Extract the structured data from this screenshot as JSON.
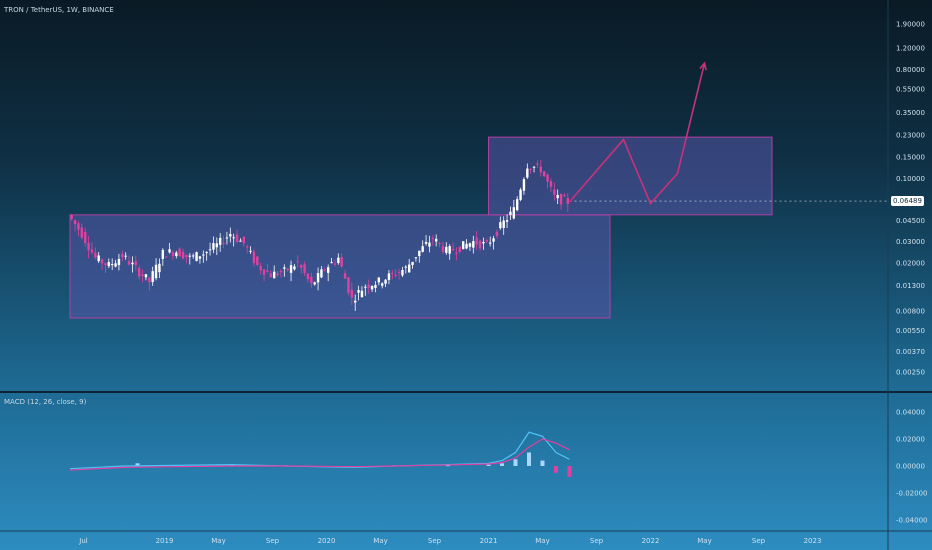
{
  "chart_data": [
    {
      "type": "candlestick",
      "title": "TRON / TetherUS, 1W, BINANCE",
      "y_scale": "log",
      "y_ticks": [
        "1.90000",
        "1.20000",
        "0.80000",
        "0.55000",
        "0.35000",
        "0.23000",
        "0.15000",
        "0.10000",
        "0.04500",
        "0.03000",
        "0.02000",
        "0.01300",
        "0.00800",
        "0.00550",
        "0.00370",
        "0.00250"
      ],
      "current_price": "0.06489",
      "x_ticks": [
        "Jul",
        "2019",
        "May",
        "Sep",
        "2020",
        "May",
        "Sep",
        "2021",
        "May",
        "Sep",
        "2022",
        "May",
        "Sep",
        "2023"
      ],
      "ranges": [
        {
          "name": "accumulation-box",
          "from": "2018-06",
          "to": "2021-10",
          "top": 0.05,
          "bottom": 0.007
        },
        {
          "name": "upper-box",
          "from": "2021-01",
          "to": "2022-10",
          "top": 0.22,
          "bottom": 0.05
        }
      ],
      "projection": [
        {
          "date": "2021-07",
          "price": 0.064
        },
        {
          "date": "2021-11",
          "price": 0.21
        },
        {
          "date": "2022-01",
          "price": 0.062
        },
        {
          "date": "2022-03",
          "price": 0.11
        },
        {
          "date": "2022-05",
          "price": 0.9
        }
      ],
      "series_points": [
        {
          "date": "2018-06",
          "price": 0.05
        },
        {
          "date": "2018-07",
          "price": 0.035
        },
        {
          "date": "2018-08",
          "price": 0.022
        },
        {
          "date": "2018-09",
          "price": 0.019
        },
        {
          "date": "2018-10",
          "price": 0.023
        },
        {
          "date": "2018-11",
          "price": 0.018
        },
        {
          "date": "2018-12",
          "price": 0.014
        },
        {
          "date": "2019-01",
          "price": 0.024
        },
        {
          "date": "2019-02",
          "price": 0.025
        },
        {
          "date": "2019-03",
          "price": 0.022
        },
        {
          "date": "2019-04",
          "price": 0.024
        },
        {
          "date": "2019-05",
          "price": 0.028
        },
        {
          "date": "2019-06",
          "price": 0.035
        },
        {
          "date": "2019-07",
          "price": 0.029
        },
        {
          "date": "2019-08",
          "price": 0.019
        },
        {
          "date": "2019-09",
          "price": 0.016
        },
        {
          "date": "2019-10",
          "price": 0.017
        },
        {
          "date": "2019-11",
          "price": 0.02
        },
        {
          "date": "2019-12",
          "price": 0.013
        },
        {
          "date": "2020-01",
          "price": 0.018
        },
        {
          "date": "2020-02",
          "price": 0.022
        },
        {
          "date": "2020-03",
          "price": 0.01
        },
        {
          "date": "2020-04",
          "price": 0.013
        },
        {
          "date": "2020-05",
          "price": 0.014
        },
        {
          "date": "2020-06",
          "price": 0.016
        },
        {
          "date": "2020-07",
          "price": 0.018
        },
        {
          "date": "2020-08",
          "price": 0.025
        },
        {
          "date": "2020-09",
          "price": 0.032
        },
        {
          "date": "2020-10",
          "price": 0.025
        },
        {
          "date": "2020-11",
          "price": 0.027
        },
        {
          "date": "2020-12",
          "price": 0.03
        },
        {
          "date": "2021-01",
          "price": 0.028
        },
        {
          "date": "2021-02",
          "price": 0.04
        },
        {
          "date": "2021-03",
          "price": 0.055
        },
        {
          "date": "2021-04",
          "price": 0.13
        },
        {
          "date": "2021-05",
          "price": 0.12
        },
        {
          "date": "2021-06",
          "price": 0.07
        },
        {
          "date": "2021-07",
          "price": 0.064
        }
      ]
    },
    {
      "type": "line",
      "title": "MACD (12, 26, close, 9)",
      "y_ticks": [
        "0.04000",
        "0.02000",
        "0.00000",
        "-0.02000",
        "-0.04000"
      ],
      "macd": [
        {
          "date": "2018-06",
          "value": -0.002
        },
        {
          "date": "2018-10",
          "value": 0.0
        },
        {
          "date": "2019-06",
          "value": 0.001
        },
        {
          "date": "2019-10",
          "value": 0.0
        },
        {
          "date": "2020-03",
          "value": -0.001
        },
        {
          "date": "2020-06",
          "value": 0.0
        },
        {
          "date": "2020-10",
          "value": 0.001
        },
        {
          "date": "2021-01",
          "value": 0.002
        },
        {
          "date": "2021-02",
          "value": 0.004
        },
        {
          "date": "2021-03",
          "value": 0.01
        },
        {
          "date": "2021-04",
          "value": 0.025
        },
        {
          "date": "2021-05",
          "value": 0.022
        },
        {
          "date": "2021-06",
          "value": 0.01
        },
        {
          "date": "2021-07",
          "value": 0.005
        }
      ],
      "signal": [
        {
          "date": "2018-06",
          "value": -0.003
        },
        {
          "date": "2018-10",
          "value": -0.001
        },
        {
          "date": "2019-06",
          "value": 0.0
        },
        {
          "date": "2019-10",
          "value": 0.0
        },
        {
          "date": "2020-03",
          "value": -0.0005
        },
        {
          "date": "2020-06",
          "value": 0.0
        },
        {
          "date": "2020-10",
          "value": 0.0008
        },
        {
          "date": "2021-01",
          "value": 0.0015
        },
        {
          "date": "2021-02",
          "value": 0.0025
        },
        {
          "date": "2021-03",
          "value": 0.006
        },
        {
          "date": "2021-04",
          "value": 0.014
        },
        {
          "date": "2021-05",
          "value": 0.02
        },
        {
          "date": "2021-06",
          "value": 0.017
        },
        {
          "date": "2021-07",
          "value": 0.012
        }
      ],
      "histogram": [
        {
          "date": "2018-11",
          "value": 0.002
        },
        {
          "date": "2019-06",
          "value": 0.001
        },
        {
          "date": "2019-10",
          "value": 0.0005
        },
        {
          "date": "2020-06",
          "value": 0.0005
        },
        {
          "date": "2020-10",
          "value": 0.0006
        },
        {
          "date": "2021-01",
          "value": 0.001
        },
        {
          "date": "2021-02",
          "value": 0.002
        },
        {
          "date": "2021-03",
          "value": 0.005
        },
        {
          "date": "2021-04",
          "value": 0.01
        },
        {
          "date": "2021-05",
          "value": 0.004
        },
        {
          "date": "2021-06",
          "value": -0.005
        },
        {
          "date": "2021-07",
          "value": -0.008
        }
      ]
    }
  ],
  "colors": {
    "up_candle": "#ffffff",
    "down_candle": "#e040a0",
    "box_fill": "#5555a8",
    "box_stroke": "#b040a0",
    "projection": "#c8327a",
    "macd_line": "#4fc3f7",
    "signal_line": "#e040a0",
    "histogram_pos": "#a9d8ff",
    "histogram_neg": "#e040a0"
  }
}
